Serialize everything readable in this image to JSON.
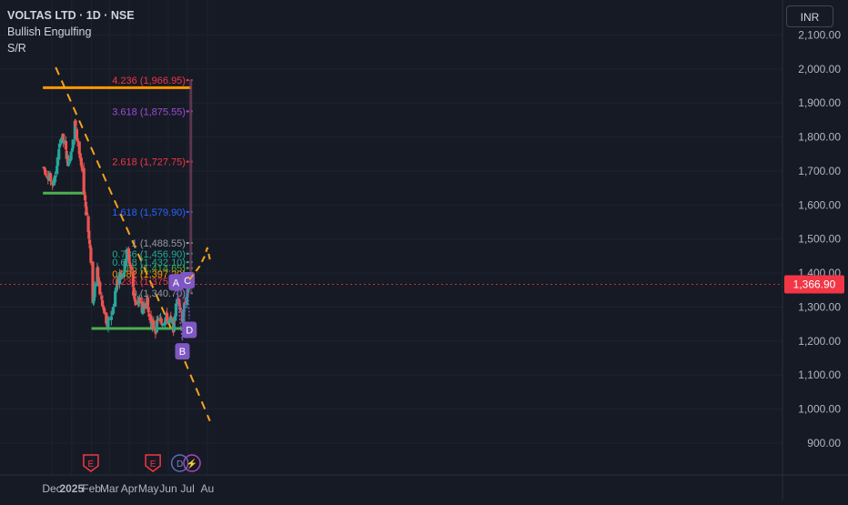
{
  "header": {
    "symbol_line": "VOLTAS LTD · 1D · NSE",
    "pattern_label": "Bullish Engulfing",
    "sr_label": "S/R",
    "currency": "INR"
  },
  "colors": {
    "background": "#161a25",
    "up": "#26a69a",
    "down": "#ef5350",
    "trendline": "#f7a21b",
    "support": "#4caf50",
    "resistance": "#ff9800",
    "pattern": "#7e57c2",
    "price_badge": "#f23645"
  },
  "current_price": {
    "label": "1,366.90",
    "value": 1366.9
  },
  "chart_data": {
    "type": "candlestick",
    "y_axis": {
      "min": 850,
      "max": 2150,
      "ticks": [
        900,
        1000,
        1100,
        1200,
        1300,
        1400,
        1500,
        1600,
        1700,
        1800,
        1900,
        2000,
        2100
      ],
      "tick_labels": [
        "900.00",
        "1,000.00",
        "1,100.00",
        "1,200.00",
        "1,300.00",
        "1,400.00",
        "1,500.00",
        "1,600.00",
        "1,700.00",
        "1,800.00",
        "1,900.00",
        "2,000.00",
        "2,100.00"
      ]
    },
    "x_axis": {
      "labels": [
        "Dec",
        "2025",
        "Feb",
        "Mar",
        "Apr",
        "May",
        "Jun",
        "Jul",
        "Au"
      ],
      "label_positions": [
        "2024-12-01",
        "2025-01-01",
        "2025-02-01",
        "2025-03-01",
        "2025-04-01",
        "2025-05-01",
        "2025-06-01",
        "2025-07-01",
        "2025-08-01"
      ]
    },
    "price_path": [
      [
        "2024-11-18",
        1710
      ],
      [
        "2024-11-25",
        1690
      ],
      [
        "2024-12-03",
        1660
      ],
      [
        "2024-12-10",
        1730
      ],
      [
        "2024-12-16",
        1810
      ],
      [
        "2024-12-20",
        1780
      ],
      [
        "2024-12-27",
        1720
      ],
      [
        "2025-01-02",
        1780
      ],
      [
        "2025-01-06",
        1840
      ],
      [
        "2025-01-10",
        1790
      ],
      [
        "2025-01-14",
        1740
      ],
      [
        "2025-01-20",
        1650
      ],
      [
        "2025-01-24",
        1580
      ],
      [
        "2025-01-28",
        1500
      ],
      [
        "2025-02-01",
        1420
      ],
      [
        "2025-02-03",
        1310
      ],
      [
        "2025-02-06",
        1360
      ],
      [
        "2025-02-10",
        1410
      ],
      [
        "2025-02-14",
        1340
      ],
      [
        "2025-02-20",
        1290
      ],
      [
        "2025-02-25",
        1240
      ],
      [
        "2025-03-03",
        1270
      ],
      [
        "2025-03-07",
        1300
      ],
      [
        "2025-03-12",
        1370
      ],
      [
        "2025-03-18",
        1400
      ],
      [
        "2025-03-24",
        1410
      ],
      [
        "2025-03-28",
        1460
      ],
      [
        "2025-04-02",
        1430
      ],
      [
        "2025-04-07",
        1360
      ],
      [
        "2025-04-11",
        1300
      ],
      [
        "2025-04-17",
        1320
      ],
      [
        "2025-04-22",
        1290
      ],
      [
        "2025-04-28",
        1330
      ],
      [
        "2025-05-02",
        1270
      ],
      [
        "2025-05-07",
        1250
      ],
      [
        "2025-05-12",
        1230
      ],
      [
        "2025-05-16",
        1265
      ],
      [
        "2025-05-22",
        1255
      ],
      [
        "2025-05-28",
        1270
      ],
      [
        "2025-06-04",
        1260
      ],
      [
        "2025-06-09",
        1240
      ],
      [
        "2025-06-13",
        1300
      ],
      [
        "2025-06-17",
        1330
      ],
      [
        "2025-06-20",
        1290
      ],
      [
        "2025-06-24",
        1260
      ],
      [
        "2025-06-27",
        1320
      ],
      [
        "2025-07-01",
        1350
      ],
      [
        "2025-07-04",
        1367
      ]
    ],
    "lines": {
      "resistance": {
        "value": 1945,
        "x_start": "2024-11-17",
        "x_end": "2025-07-07"
      },
      "support_upper": {
        "value": 1635,
        "x_start": "2024-11-17",
        "x_end": "2025-01-22"
      },
      "support_small": {
        "value": 1575,
        "x_start": "2025-01-21",
        "x_end": "2025-01-27"
      },
      "support_lower": {
        "value": 1237,
        "x_start": "2025-02-01",
        "x_end": "2025-07-08"
      },
      "trendline_down": {
        "from": [
          "2024-12-07",
          2005
        ],
        "to": [
          "2025-06-07",
          1230
        ]
      },
      "trendline_lower": {
        "from": [
          "2025-06-18",
          1180
        ],
        "to": [
          "2025-08-05",
          965
        ]
      }
    },
    "fib_levels": [
      {
        "label": "4.236 (1,966.95)",
        "value": 1966.95,
        "color": "#f23645"
      },
      {
        "label": "3.618 (1,875.55)",
        "value": 1875.55,
        "color": "#9c4dd3"
      },
      {
        "label": "2.618 (1,727.75)",
        "value": 1727.75,
        "color": "#f23645"
      },
      {
        "label": "1.618 (1,579.90)",
        "value": 1579.9,
        "color": "#2962ff"
      },
      {
        "label": "1 (1,488.55)",
        "value": 1488.55,
        "color": "#9598a1"
      },
      {
        "label": "0.786 (1,456.90)",
        "value": 1456.9,
        "color": "#22ab94"
      },
      {
        "label": "0.618 (1,432.10)",
        "value": 1432.1,
        "color": "#22ab94"
      },
      {
        "label": "0.5 (1,414.65)",
        "value": 1414.65,
        "color": "#4caf50"
      },
      {
        "label": "0.382 (1,397.20)",
        "value": 1397.2,
        "color": "#ff9800"
      },
      {
        "label": "0.236 (1,375.60)",
        "value": 1375.6,
        "color": "#f23645"
      },
      {
        "label": "0 (1,340.70)",
        "value": 1340.7,
        "color": "#9598a1"
      }
    ],
    "pattern_points": [
      {
        "label": "A",
        "date": "2025-06-13",
        "value": 1362
      },
      {
        "label": "B",
        "date": "2025-06-23",
        "value": 1202
      },
      {
        "label": "C",
        "date": "2025-07-01",
        "value": 1368
      },
      {
        "label": "D",
        "date": "2025-07-04",
        "value": 1265
      }
    ],
    "projection_path": [
      [
        "2025-07-04",
        1380
      ],
      [
        "2025-07-20",
        1420
      ],
      [
        "2025-07-28",
        1450
      ],
      [
        "2025-08-01",
        1475
      ],
      [
        "2025-08-05",
        1440
      ]
    ],
    "event_markers": [
      {
        "label": "E",
        "date": "2025-01-31",
        "kind": "earnings"
      },
      {
        "label": "E",
        "date": "2025-05-08",
        "kind": "earnings"
      },
      {
        "label": "D",
        "date": "2025-06-19",
        "kind": "dividend"
      },
      {
        "label": "⚡",
        "date": "2025-07-08",
        "kind": "event"
      }
    ]
  }
}
